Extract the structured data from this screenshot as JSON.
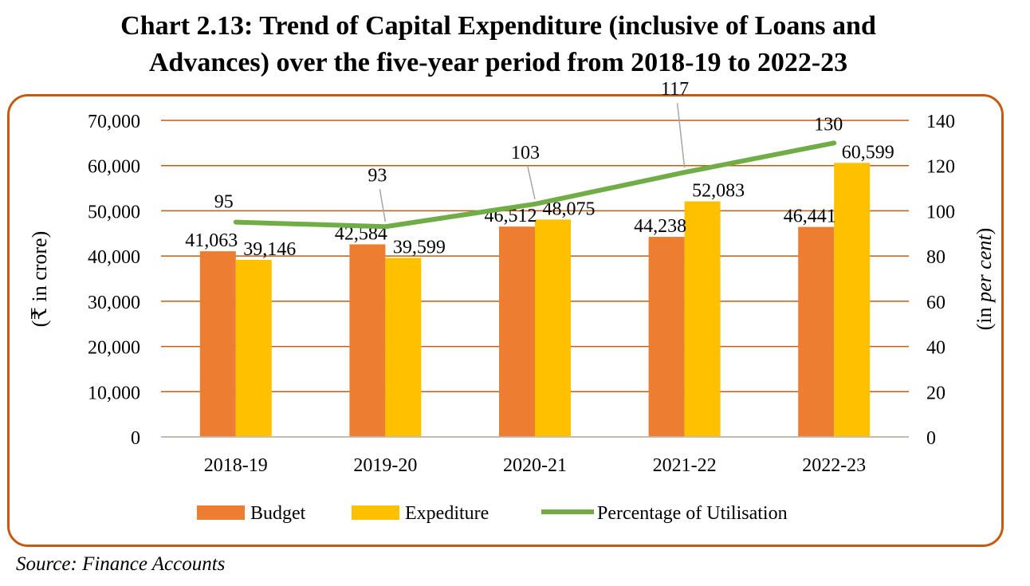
{
  "title_line1": "Chart 2.13: Trend of Capital Expenditure (inclusive of Loans and",
  "title_line2": "Advances) over the five-year period from 2018-19 to 2022-23",
  "source": "Source: Finance Accounts",
  "chart_data": {
    "type": "bar",
    "categories": [
      "2018-19",
      "2019-20",
      "2020-21",
      "2021-22",
      "2022-23"
    ],
    "series": [
      {
        "name": "Budget",
        "kind": "bar",
        "axis": "left",
        "color": "#ED7D31",
        "values": [
          41063,
          42584,
          46512,
          44238,
          46441
        ],
        "labels": [
          "41,063",
          "42,584",
          "46,512",
          "44,238",
          "46,441"
        ]
      },
      {
        "name": "Expediture",
        "kind": "bar",
        "axis": "left",
        "color": "#FFC000",
        "values": [
          39146,
          39599,
          48075,
          52083,
          60599
        ],
        "labels": [
          "39,146",
          "39,599",
          "48,075",
          "52,083",
          "60,599"
        ]
      },
      {
        "name": "Percentage of Utilisation",
        "kind": "line",
        "axis": "right",
        "color": "#70AD47",
        "values": [
          95,
          93,
          103,
          117,
          130
        ],
        "labels": [
          "95",
          "93",
          "103",
          "117",
          "130"
        ]
      }
    ],
    "ylabel_left": "(₹ in crore)",
    "ylabel_right_prefix": "(in ",
    "ylabel_right_italic": "per cent",
    "ylabel_right_suffix": ")",
    "ylim_left": [
      0,
      70000
    ],
    "ylim_right": [
      0,
      140
    ],
    "left_ticks": [
      "0",
      "10,000",
      "20,000",
      "30,000",
      "40,000",
      "50,000",
      "60,000",
      "70,000"
    ],
    "right_ticks": [
      "0",
      "20",
      "40",
      "60",
      "80",
      "100",
      "120",
      "140"
    ],
    "grid": true,
    "legend_position": "bottom",
    "gridline_color": "#C55A11"
  }
}
